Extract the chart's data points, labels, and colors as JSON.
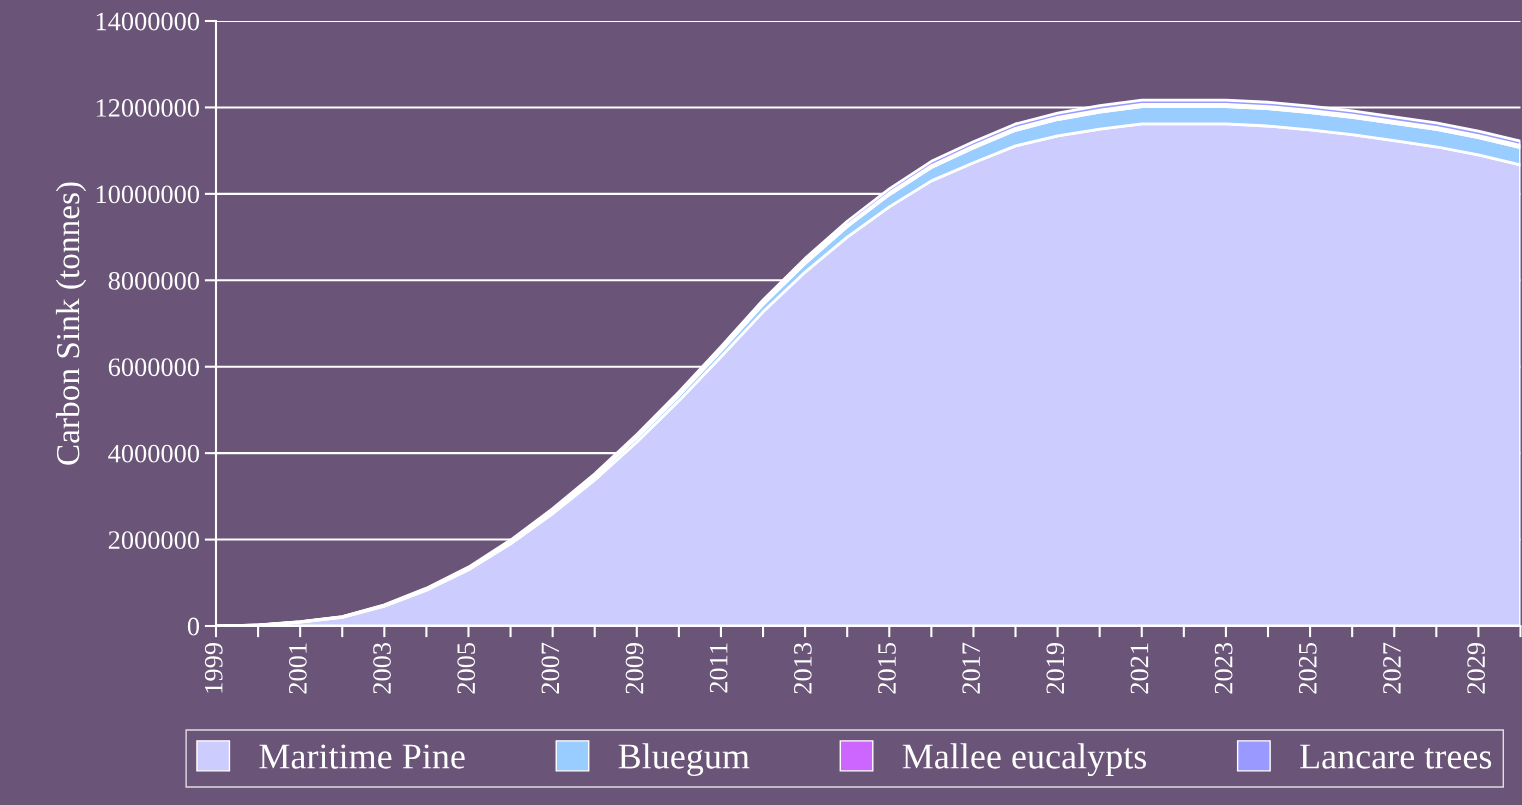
{
  "chart_data": {
    "type": "area",
    "stacked": true,
    "ylabel": "Carbon Sink (tonnes)",
    "categories": [
      "1999",
      null,
      "2001",
      null,
      "2003",
      null,
      "2005",
      null,
      "2007",
      null,
      "2009",
      null,
      "2011",
      null,
      "2013",
      null,
      "2015",
      null,
      "2017",
      null,
      "2019",
      null,
      "2021",
      null,
      "2023",
      null,
      "2025",
      null,
      "2027",
      null,
      "2029",
      null
    ],
    "series": [
      {
        "name": "Maritime Pine",
        "color": "#ccccff",
        "values": [
          0,
          20000,
          90000,
          200000,
          460000,
          830000,
          1300000,
          1900000,
          2600000,
          3380000,
          4260000,
          5210000,
          6230000,
          7270000,
          8190000,
          9000000,
          9700000,
          10300000,
          10720000,
          11110000,
          11340000,
          11500000,
          11620000,
          11620000,
          11620000,
          11570000,
          11480000,
          11370000,
          11230000,
          11090000,
          10900000,
          10670000
        ]
      },
      {
        "name": "Bluegum",
        "color": "#99ccff",
        "values": [
          0,
          2000,
          5000,
          10000,
          15000,
          25000,
          35000,
          50000,
          65000,
          80000,
          100000,
          120000,
          140000,
          170000,
          200000,
          240000,
          280000,
          310000,
          340000,
          360000,
          380000,
          390000,
          400000,
          400000,
          400000,
          400000,
          400000,
          400000,
          400000,
          400000,
          400000,
          400000
        ]
      },
      {
        "name": "Mallee eucalypts",
        "color": "#cc66ff",
        "values": [
          0,
          500,
          1000,
          2000,
          4000,
          6000,
          9000,
          12000,
          15000,
          18000,
          21000,
          24000,
          27000,
          30000,
          33000,
          36000,
          39000,
          42000,
          45000,
          48000,
          50000,
          50000,
          50000,
          50000,
          50000,
          50000,
          50000,
          50000,
          50000,
          50000,
          50000,
          50000
        ]
      },
      {
        "name": "Lancare trees",
        "color": "#9999ff",
        "values": [
          0,
          1000,
          3000,
          5000,
          10000,
          15000,
          20000,
          28000,
          36000,
          44000,
          52000,
          60000,
          68000,
          76000,
          84000,
          90000,
          95000,
          100000,
          100000,
          100000,
          100000,
          100000,
          100000,
          100000,
          100000,
          100000,
          100000,
          100000,
          100000,
          100000,
          100000,
          100000
        ]
      }
    ],
    "ylim": [
      0,
      14000000
    ],
    "yticks": [
      0,
      2000000,
      4000000,
      6000000,
      8000000,
      10000000,
      12000000,
      14000000
    ],
    "grid": "y",
    "legend": "bottom"
  }
}
